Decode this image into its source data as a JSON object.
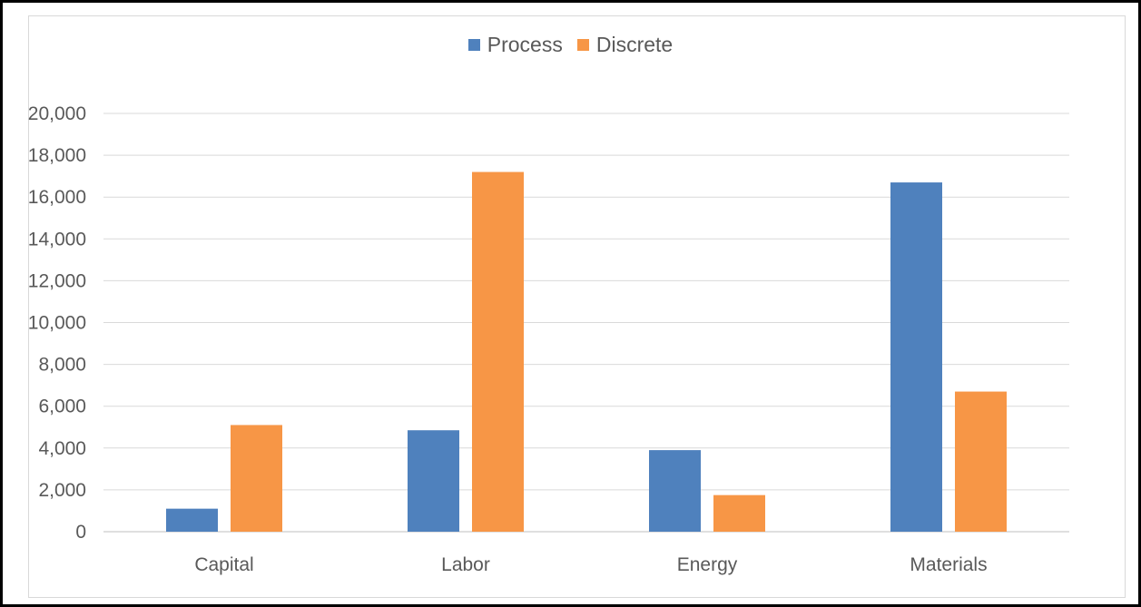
{
  "chart_data": {
    "type": "bar",
    "title": "",
    "xlabel": "",
    "ylabel": "",
    "categories": [
      "Capital",
      "Labor",
      "Energy",
      "Materials"
    ],
    "series": [
      {
        "name": "Process",
        "color": "#4f81bd",
        "values": [
          1100,
          4850,
          3900,
          16700
        ]
      },
      {
        "name": "Discrete",
        "color": "#f79646",
        "values": [
          5100,
          17200,
          1750,
          6700
        ]
      }
    ],
    "ylim": [
      0,
      20000
    ],
    "yticks": [
      0,
      2000,
      4000,
      6000,
      8000,
      10000,
      12000,
      14000,
      16000,
      18000,
      20000
    ],
    "ytick_labels": [
      "0",
      "2,000",
      "4,000",
      "6,000",
      "8,000",
      "10,000",
      "12,000",
      "14,000",
      "16,000",
      "18,000",
      "20,000"
    ],
    "grid": true,
    "legend_position": "top-center"
  }
}
